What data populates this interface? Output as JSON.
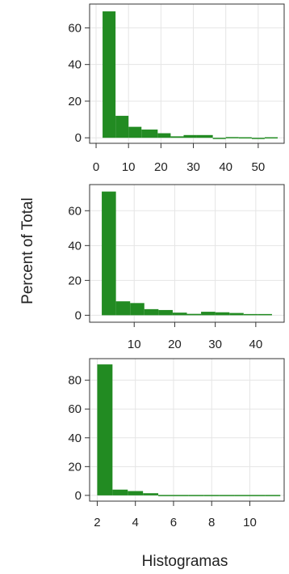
{
  "ylabel": "Percent of Total",
  "xlabel": "Histogramas",
  "bar_color": "#228b22",
  "grid_color": "#e5e5e5",
  "chart_data": [
    {
      "type": "bar",
      "subtype": "histogram",
      "bins": [
        [
          2,
          6
        ],
        [
          6,
          10
        ],
        [
          10,
          14
        ],
        [
          14,
          19
        ],
        [
          19,
          23
        ],
        [
          23,
          27
        ],
        [
          27,
          31
        ],
        [
          31,
          36
        ],
        [
          36,
          40
        ],
        [
          40,
          44
        ],
        [
          44,
          48
        ],
        [
          48,
          52
        ],
        [
          52,
          56
        ]
      ],
      "values": [
        69,
        12,
        6,
        4.5,
        2.5,
        0.8,
        1.5,
        1.5,
        0,
        0.4,
        0.3,
        0,
        0.3
      ],
      "xlim": [
        -2,
        58
      ],
      "ylim": [
        -3,
        73
      ],
      "xticks": [
        0,
        10,
        20,
        30,
        40,
        50
      ],
      "yticks": [
        0,
        20,
        40,
        60
      ],
      "grid": true
    },
    {
      "type": "bar",
      "subtype": "histogram",
      "bins": [
        [
          2,
          5.5
        ],
        [
          5.5,
          9
        ],
        [
          9,
          12.5
        ],
        [
          12.5,
          16
        ],
        [
          16,
          19.5
        ],
        [
          19.5,
          23
        ],
        [
          23,
          26.5
        ],
        [
          26.5,
          30
        ],
        [
          30,
          33.5
        ],
        [
          33.5,
          37
        ],
        [
          37,
          40.5
        ],
        [
          40.5,
          44
        ]
      ],
      "values": [
        71,
        8,
        7,
        3.5,
        3,
        1.5,
        0.8,
        2,
        1.7,
        1.3,
        0.7,
        0.7
      ],
      "xlim": [
        -1,
        47
      ],
      "ylim": [
        -4,
        75
      ],
      "xticks": [
        10,
        20,
        30,
        40
      ],
      "yticks": [
        0,
        20,
        40,
        60
      ],
      "grid": true
    },
    {
      "type": "bar",
      "subtype": "histogram",
      "bins": [
        [
          2,
          2.8
        ],
        [
          2.8,
          3.6
        ],
        [
          3.6,
          4.4
        ],
        [
          4.4,
          5.2
        ],
        [
          5.2,
          6
        ],
        [
          6,
          6.8
        ],
        [
          6.8,
          7.6
        ],
        [
          7.6,
          8.4
        ],
        [
          8.4,
          9.2
        ],
        [
          9.2,
          10
        ],
        [
          10,
          10.8
        ],
        [
          10.8,
          11.6
        ]
      ],
      "values": [
        91,
        4,
        3,
        1.5,
        0.3,
        0.3,
        0.3,
        0.3,
        0.3,
        0.3,
        0.3,
        0.3
      ],
      "xlim": [
        1.6,
        11.8
      ],
      "ylim": [
        -4,
        95
      ],
      "xticks": [
        2,
        4,
        6,
        8,
        10
      ],
      "yticks": [
        0,
        20,
        40,
        60,
        80
      ],
      "grid": true
    }
  ]
}
